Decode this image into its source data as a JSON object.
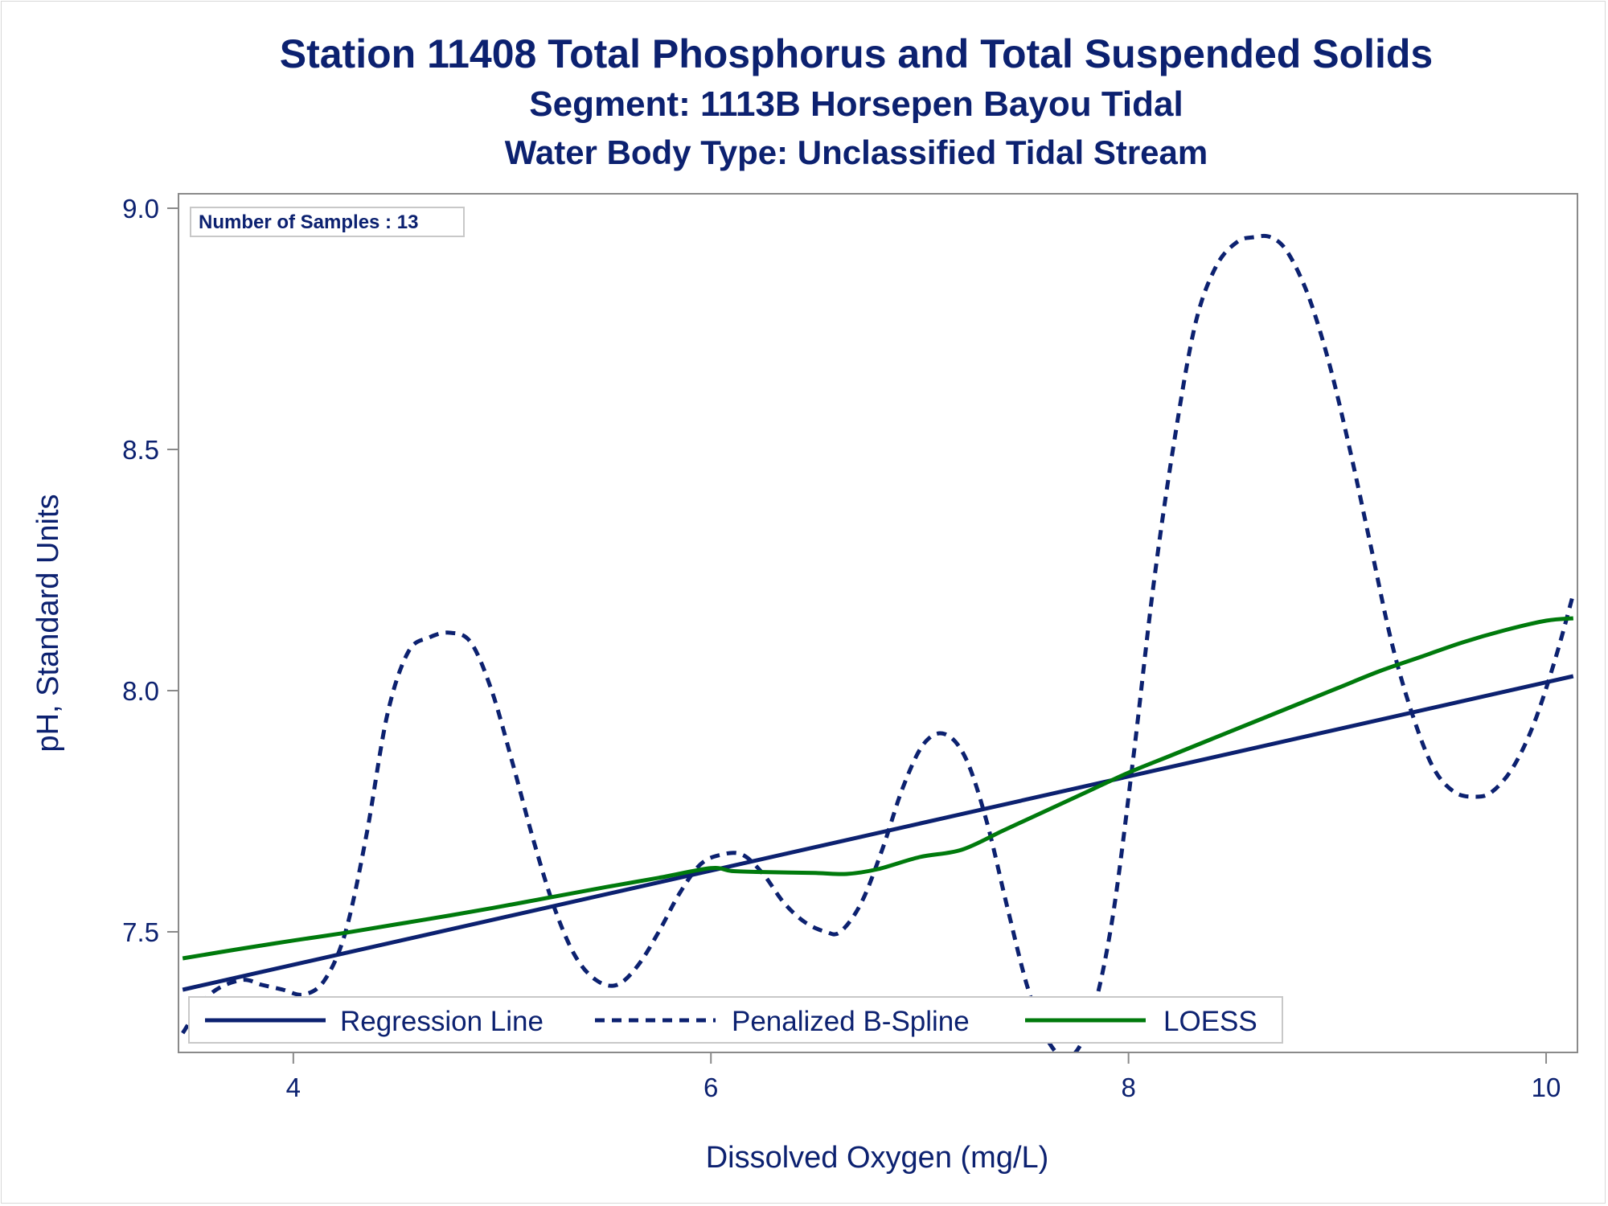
{
  "chart_data": {
    "type": "line",
    "title": "Station 11408  Total Phosphorus and Total Suspended Solids",
    "subtitle": "Segment: 1113B  Horsepen Bayou Tidal",
    "subtitle2": "Water Body Type: Unclassified Tidal Stream",
    "xlabel": "Dissolved Oxygen (mg/L)",
    "ylabel": "pH, Standard Units",
    "xlim": [
      3.45,
      10.15
    ],
    "ylim": [
      7.25,
      9.03
    ],
    "xticks": [
      4,
      6,
      8,
      10
    ],
    "yticks": [
      7.5,
      8.0,
      8.5,
      9.0
    ],
    "xtick_labels": [
      "4",
      "6",
      "8",
      "10"
    ],
    "ytick_labels": [
      "7.5",
      "8.0",
      "8.5",
      "9.0"
    ],
    "inset": "Number of Samples : 13",
    "legend_position": "bottom-left-inside",
    "series": [
      {
        "name": "Regression Line",
        "style": "solid",
        "color": "#0c2170",
        "x": [
          3.47,
          10.13
        ],
        "y": [
          7.38,
          8.03
        ]
      },
      {
        "name": "Penalized B-Spline",
        "style": "dashed",
        "color": "#0c2170",
        "x": [
          3.47,
          3.6,
          3.75,
          3.85,
          3.95,
          4.05,
          4.15,
          4.25,
          4.35,
          4.45,
          4.55,
          4.65,
          4.75,
          4.85,
          4.95,
          5.05,
          5.15,
          5.25,
          5.35,
          5.45,
          5.55,
          5.65,
          5.75,
          5.85,
          5.95,
          6.05,
          6.15,
          6.25,
          6.35,
          6.45,
          6.55,
          6.62,
          6.72,
          6.82,
          6.92,
          7.02,
          7.12,
          7.22,
          7.32,
          7.42,
          7.52,
          7.62,
          7.72,
          7.82,
          7.92,
          8.02,
          8.12,
          8.22,
          8.32,
          8.42,
          8.52,
          8.6,
          8.68,
          8.76,
          8.86,
          8.96,
          9.06,
          9.16,
          9.26,
          9.36,
          9.46,
          9.56,
          9.66,
          9.74,
          9.84,
          9.94,
          10.04,
          10.13
        ],
        "y": [
          7.29,
          7.37,
          7.4,
          7.39,
          7.38,
          7.37,
          7.4,
          7.5,
          7.7,
          7.95,
          8.08,
          8.11,
          8.12,
          8.1,
          8.0,
          7.85,
          7.69,
          7.55,
          7.45,
          7.4,
          7.39,
          7.43,
          7.5,
          7.58,
          7.64,
          7.66,
          7.66,
          7.62,
          7.56,
          7.52,
          7.5,
          7.5,
          7.56,
          7.67,
          7.8,
          7.89,
          7.91,
          7.86,
          7.73,
          7.55,
          7.38,
          7.27,
          7.24,
          7.32,
          7.52,
          7.85,
          8.22,
          8.52,
          8.76,
          8.88,
          8.93,
          8.94,
          8.94,
          8.91,
          8.82,
          8.68,
          8.5,
          8.3,
          8.1,
          7.95,
          7.84,
          7.79,
          7.78,
          7.79,
          7.84,
          7.93,
          8.06,
          8.2
        ]
      },
      {
        "name": "LOESS",
        "style": "solid",
        "color": "#007a0c",
        "x": [
          3.47,
          3.75,
          4.0,
          4.25,
          4.5,
          4.75,
          5.0,
          5.25,
          5.5,
          5.75,
          6.0,
          6.1,
          6.25,
          6.5,
          6.65,
          6.8,
          7.0,
          7.2,
          7.4,
          7.6,
          7.8,
          8.0,
          8.2,
          8.4,
          8.6,
          8.8,
          9.0,
          9.2,
          9.4,
          9.6,
          9.8,
          10.0,
          10.13
        ],
        "y": [
          7.445,
          7.465,
          7.482,
          7.498,
          7.516,
          7.534,
          7.553,
          7.573,
          7.593,
          7.612,
          7.632,
          7.626,
          7.624,
          7.622,
          7.62,
          7.63,
          7.655,
          7.67,
          7.71,
          7.75,
          7.79,
          7.83,
          7.865,
          7.9,
          7.935,
          7.97,
          8.005,
          8.04,
          8.07,
          8.1,
          8.125,
          8.145,
          8.15
        ]
      }
    ]
  }
}
